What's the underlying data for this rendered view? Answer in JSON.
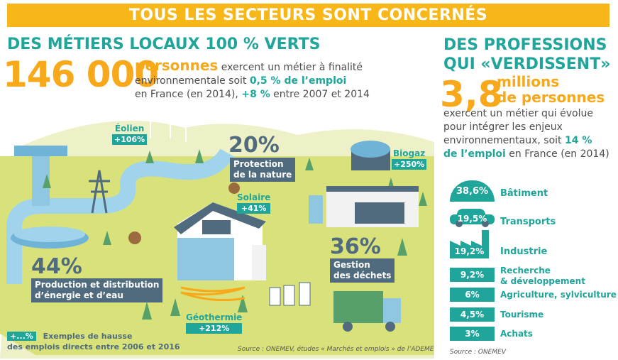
{
  "banner": "TOUS LES SECTEURS SONT CONCERNÉS",
  "left": {
    "heading": "DES MÉTIERS LOCAUX 100 % VERTS",
    "big_number": "146 000",
    "persons": "personnes",
    "desc_1": "exercent un métier à finalité",
    "desc_2a": "environnementale soit ",
    "desc_2b": "0,5 % de l’emploi",
    "desc_3a": "en France (en 2014), ",
    "desc_3b": "+8 %",
    "desc_3c": " entre 2007 et 2014"
  },
  "sectors": {
    "eolien": {
      "name": "Éolien",
      "value": "+106%"
    },
    "biogaz": {
      "name": "Biogaz",
      "value": "+250%"
    },
    "solaire": {
      "name": "Solaire",
      "value": "+41%"
    },
    "geothermie": {
      "name": "Géothermie",
      "value": "+212%"
    },
    "protection": {
      "pct": "20%",
      "label_1": "Protection",
      "label_2": "de la nature"
    },
    "dechets": {
      "pct": "36%",
      "label_1": "Gestion",
      "label_2": "des déchets"
    },
    "energie": {
      "pct": "44%",
      "label_1": "Production et distribution",
      "label_2": "d’énergie et d’eau"
    }
  },
  "legend": {
    "badge": "+...%",
    "text_1": "Exemples de hausse",
    "text_2": "des emplois directs entre 2006 et 2016"
  },
  "source_left": "Source : ONEMEV, études « Marchés et emplois » de l’ADEME",
  "right": {
    "heading_1": "DES PROFESSIONS",
    "heading_2": "QUI «VERDISSENT»",
    "big_number": "3,8",
    "millions_1": "millions",
    "millions_2": "de personnes",
    "desc_1": "exercent un métier qui évolue",
    "desc_2": "pour intégrer les enjeux",
    "desc_3a": "environnementaux, soit ",
    "desc_3b": "14 %",
    "desc_4a": "de l’emploi",
    "desc_4b": " en France (en 2014)"
  },
  "breakdown": [
    {
      "value": "38,6%",
      "label": "Bâtiment",
      "icon": "building-icon"
    },
    {
      "value": "19,5%",
      "label": "Transports",
      "icon": "car-icon"
    },
    {
      "value": "19,2%",
      "label": "Industrie",
      "icon": "factory-icon"
    },
    {
      "value": "9,2%",
      "label_1": "Recherche",
      "label_2": "& développement"
    },
    {
      "value": "6%",
      "label": "Agriculture, sylviculture"
    },
    {
      "value": "4,5%",
      "label": "Tourisme"
    },
    {
      "value": "3%",
      "label": "Achats"
    }
  ],
  "source_right": "Source : ONEMEV",
  "colors": {
    "teal": "#1fa59a",
    "orange": "#f7a81b",
    "banner": "#f7b719",
    "slate": "#4f6b7d",
    "grass": "#d9e27a",
    "river": "#9fd4ec"
  }
}
